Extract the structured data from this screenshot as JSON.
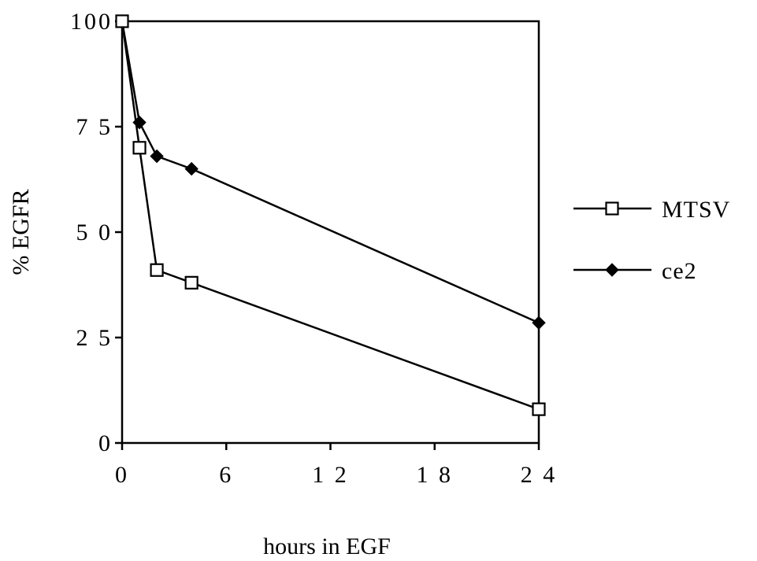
{
  "chart_data": {
    "type": "line",
    "title": "",
    "xlabel": "hours in EGF",
    "ylabel": "% EGFR",
    "xlim": [
      0,
      24
    ],
    "ylim": [
      0,
      100
    ],
    "xticks": [
      0,
      6,
      12,
      18,
      24
    ],
    "yticks": [
      0,
      25,
      50,
      75,
      100
    ],
    "xtick_labels": [
      "0",
      "6",
      "1 2",
      "1 8",
      "2 4"
    ],
    "ytick_labels": [
      "0",
      "2 5",
      "5 0",
      "7 5",
      "100"
    ],
    "grid": false,
    "legend_position": "right",
    "series": [
      {
        "name": "MTSV",
        "marker": "open-square",
        "color": "#000000",
        "x": [
          0,
          1,
          2,
          4,
          24
        ],
        "y": [
          100,
          70,
          41,
          38,
          8
        ]
      },
      {
        "name": "ce2",
        "marker": "filled-diamond",
        "color": "#000000",
        "x": [
          0,
          1,
          2,
          4,
          24
        ],
        "y": [
          100,
          76,
          68,
          65,
          28.5
        ]
      }
    ]
  }
}
